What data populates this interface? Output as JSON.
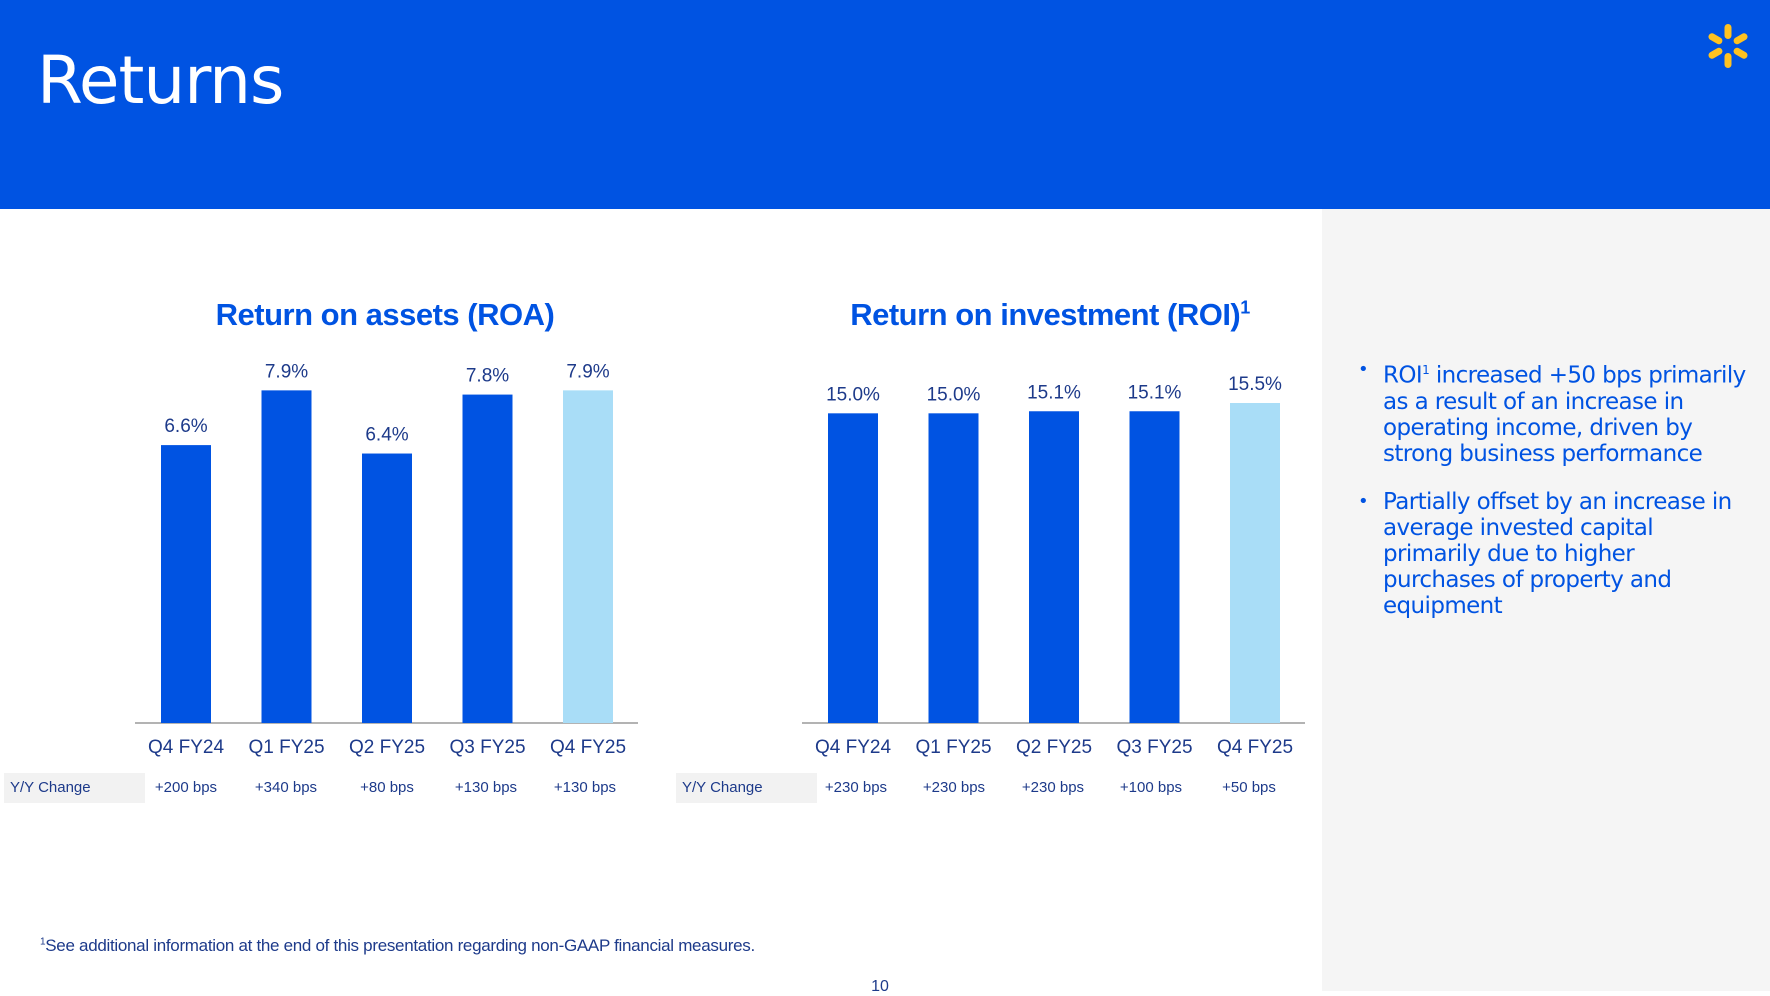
{
  "header": {
    "title": "Returns"
  },
  "logo": {
    "icon": "spark-logo-icon",
    "color": "#ffc220"
  },
  "colors": {
    "header_bg": "#0053e2",
    "bar": "#0053e2",
    "bar_highlight": "#a9ddf7",
    "text": "#1d3a8a"
  },
  "charts": {
    "roa": {
      "title": "Return on assets (ROA)"
    },
    "roi": {
      "title": "Return on investment (ROI)",
      "footnote_mark": "1"
    }
  },
  "yy": {
    "label": "Y/Y Change",
    "roa": [
      "+200 bps",
      "+340 bps",
      "+80 bps",
      "+130 bps",
      "+130 bps"
    ],
    "roi": [
      "+230 bps",
      "+230 bps",
      "+230 bps",
      "+100 bps",
      "+50 bps"
    ]
  },
  "side": {
    "bullet1_pre": "ROI",
    "bullet1_sup": "1",
    "bullet1_post": " increased +50 bps primarily as a result of an increase in operating income, driven by strong business performance",
    "bullet2": "Partially offset by an increase in average invested capital primarily due to higher purchases of property and equipment",
    "bullet_glyph": "•"
  },
  "footnote": {
    "mark": "1",
    "text": "See additional information at the end of this presentation regarding non-GAAP financial measures."
  },
  "page_number": "10",
  "chart_data": [
    {
      "type": "bar",
      "title": "Return on assets (ROA)",
      "categories": [
        "Q4 FY24",
        "Q1 FY25",
        "Q2 FY25",
        "Q3 FY25",
        "Q4 FY25"
      ],
      "values": [
        6.6,
        7.9,
        6.4,
        7.8,
        7.9
      ],
      "labels": [
        "6.6%",
        "7.9%",
        "6.4%",
        "7.8%",
        "7.9%"
      ],
      "highlight_index": 4,
      "ylim": [
        0,
        9.5
      ],
      "xlabel": "",
      "ylabel": "",
      "grid": false
    },
    {
      "type": "bar",
      "title": "Return on investment (ROI)",
      "categories": [
        "Q4 FY24",
        "Q1 FY25",
        "Q2 FY25",
        "Q3 FY25",
        "Q4 FY25"
      ],
      "values": [
        15.0,
        15.0,
        15.1,
        15.1,
        15.5
      ],
      "labels": [
        "15.0%",
        "15.0%",
        "15.1%",
        "15.1%",
        "15.5%"
      ],
      "highlight_index": 4,
      "ylim": [
        0,
        15.5
      ],
      "xlabel": "",
      "ylabel": "",
      "grid": false
    }
  ]
}
